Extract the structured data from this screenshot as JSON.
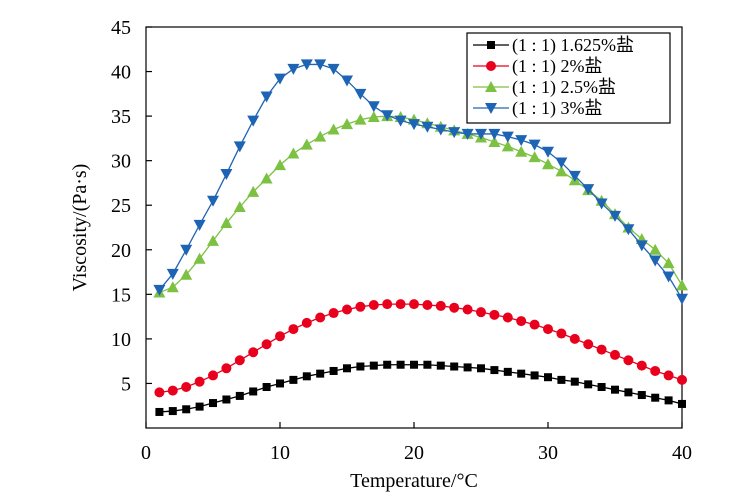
{
  "chart_data": {
    "type": "line",
    "title": "",
    "xlabel": "Temperature/°C",
    "ylabel": "Viscosity/(Pa·s)",
    "xlim": [
      0,
      40
    ],
    "ylim": [
      0,
      45
    ],
    "xticks": [
      0,
      10,
      20,
      30,
      40
    ],
    "yticks": [
      5,
      10,
      15,
      20,
      25,
      30,
      35,
      40,
      45
    ],
    "grid": false,
    "legend_position": "top-right",
    "x": [
      1,
      2,
      3,
      4,
      5,
      6,
      7,
      8,
      9,
      10,
      11,
      12,
      13,
      14,
      15,
      16,
      17,
      18,
      19,
      20,
      21,
      22,
      23,
      24,
      25,
      26,
      27,
      28,
      29,
      30,
      31,
      32,
      33,
      34,
      35,
      36,
      37,
      38,
      39,
      40
    ],
    "series": [
      {
        "name": "(1 : 1) 1.625%盐",
        "color": "#000000",
        "marker": "square",
        "values": [
          1.8,
          1.9,
          2.1,
          2.4,
          2.8,
          3.2,
          3.6,
          4.1,
          4.6,
          5.0,
          5.4,
          5.8,
          6.1,
          6.4,
          6.7,
          6.9,
          7.0,
          7.1,
          7.1,
          7.1,
          7.1,
          7.0,
          6.9,
          6.8,
          6.7,
          6.5,
          6.3,
          6.1,
          5.9,
          5.7,
          5.4,
          5.2,
          4.9,
          4.6,
          4.3,
          4.0,
          3.7,
          3.4,
          3.1,
          2.7
        ]
      },
      {
        "name": "(1 : 1) 2%盐",
        "color": "#e8001c",
        "marker": "circle",
        "values": [
          4.0,
          4.2,
          4.6,
          5.2,
          5.9,
          6.7,
          7.6,
          8.5,
          9.4,
          10.3,
          11.1,
          11.8,
          12.4,
          12.9,
          13.3,
          13.6,
          13.8,
          13.9,
          13.9,
          13.9,
          13.8,
          13.7,
          13.5,
          13.3,
          13.0,
          12.7,
          12.4,
          12.0,
          11.6,
          11.1,
          10.6,
          10.0,
          9.4,
          8.8,
          8.2,
          7.6,
          7.0,
          6.4,
          5.9,
          5.4
        ]
      },
      {
        "name": "(1 : 1) 2.5%盐",
        "color": "#7dc142",
        "marker": "triangle-up",
        "values": [
          15.2,
          15.8,
          17.2,
          19.0,
          21.0,
          23.0,
          24.8,
          26.5,
          28.0,
          29.5,
          30.8,
          31.8,
          32.7,
          33.5,
          34.1,
          34.6,
          34.9,
          35.0,
          34.9,
          34.6,
          34.2,
          33.8,
          33.4,
          33.0,
          32.6,
          32.1,
          31.6,
          31.0,
          30.4,
          29.6,
          28.8,
          27.8,
          26.7,
          25.5,
          24.0,
          22.5,
          21.2,
          20.0,
          18.5,
          16.0
        ]
      },
      {
        "name": "(1 : 1) 3%盐",
        "color": "#1e64b4",
        "marker": "triangle-down",
        "values": [
          15.5,
          17.3,
          20.0,
          22.8,
          25.5,
          28.5,
          31.6,
          34.5,
          37.2,
          39.2,
          40.3,
          40.8,
          40.8,
          40.3,
          39.0,
          37.5,
          36.1,
          35.1,
          34.5,
          34.1,
          33.8,
          33.5,
          33.2,
          33.0,
          33.0,
          33.0,
          32.7,
          32.3,
          31.8,
          31.0,
          29.8,
          28.3,
          26.8,
          25.2,
          23.8,
          22.3,
          20.5,
          18.8,
          17.0,
          14.5
        ]
      }
    ]
  }
}
